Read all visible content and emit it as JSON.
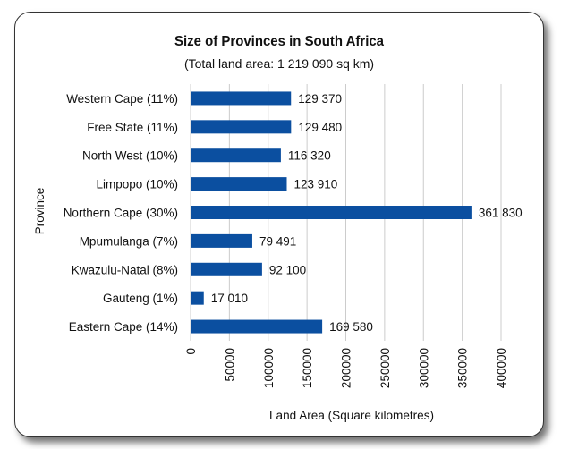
{
  "chart_data": {
    "type": "bar",
    "orientation": "horizontal",
    "title": "Size of Provinces in South Africa",
    "subtitle": "(Total land area: 1 219 090 sq km)",
    "xlabel": "Land Area (Square kilometres)",
    "ylabel": "Province",
    "categories": [
      "Western Cape (11%)",
      "Free State (11%)",
      "North West (10%)",
      "Limpopo (10%)",
      "Northern Cape (30%)",
      "Mpumulanga (7%)",
      "Kwazulu-Natal (8%)",
      "Gauteng (1%)",
      "Eastern Cape (14%)"
    ],
    "values": [
      129370,
      129480,
      116320,
      123910,
      361830,
      79491,
      92100,
      17010,
      169580
    ],
    "data_labels": [
      "129 370",
      "129 480",
      "116 320",
      "123 910",
      "361 830",
      "79 491",
      "92 100",
      "17 010",
      "169 580"
    ],
    "xlim": [
      0,
      400000
    ],
    "xticks": [
      0,
      50000,
      100000,
      150000,
      200000,
      250000,
      300000,
      350000,
      400000
    ],
    "xtick_labels": [
      "0",
      "50000",
      "100000",
      "150000",
      "200000",
      "250000",
      "300000",
      "350000",
      "400000"
    ],
    "grid": "vertical",
    "bar_color": "#0b4fa0",
    "grid_color": "#cccccc"
  }
}
